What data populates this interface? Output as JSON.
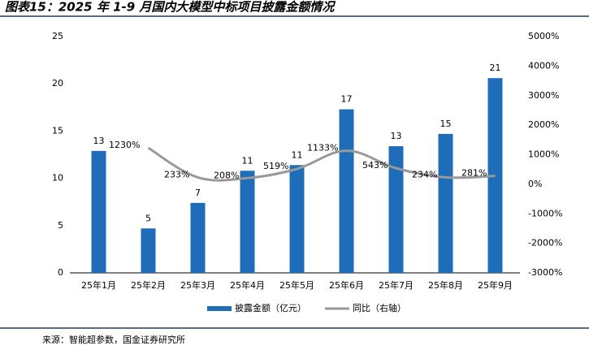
{
  "title": "图表15：2025 年 1-9 月国内大模型中标项目披露金额情况",
  "source": "来源：智能超参数，国金证券研究所",
  "chart_data": {
    "type": "bar-line",
    "categories": [
      "25年1月",
      "25年2月",
      "25年3月",
      "25年4月",
      "25年5月",
      "25年6月",
      "25年7月",
      "25年8月",
      "25年9月"
    ],
    "series": [
      {
        "name": "披露金额（亿元）",
        "color": "#1f6db8",
        "values": [
          12.9,
          4.7,
          7.4,
          10.8,
          11.4,
          17.3,
          13.4,
          14.7,
          20.6
        ],
        "value_labels": [
          "13",
          "5",
          "7",
          "11",
          "11",
          "17",
          "13",
          "15",
          "21"
        ]
      },
      {
        "name": "同比（右轴）",
        "color": "#999999",
        "axis": "y2",
        "values": [
          null,
          1230,
          233,
          208,
          519,
          1133,
          543,
          234,
          281
        ],
        "value_labels": [
          null,
          "1230%",
          "233%",
          "208%",
          "519%",
          "1133%",
          "543%",
          "234%",
          "281%"
        ]
      }
    ],
    "ylim": [
      0,
      25
    ],
    "yticks": [
      0,
      5,
      10,
      15,
      20,
      25
    ],
    "y2lim": [
      -3000,
      5000
    ],
    "y2ticks": [
      {
        "value": -3000,
        "label": "-3000%"
      },
      {
        "value": -2000,
        "label": "-2000%"
      },
      {
        "value": -1000,
        "label": "-1000%"
      },
      {
        "value": 0,
        "label": "0%"
      },
      {
        "value": 1000,
        "label": "1000%"
      },
      {
        "value": 2000,
        "label": "2000%"
      },
      {
        "value": 3000,
        "label": "3000%"
      },
      {
        "value": 4000,
        "label": "4000%"
      },
      {
        "value": 5000,
        "label": "5000%"
      }
    ],
    "legend": "bottom"
  }
}
